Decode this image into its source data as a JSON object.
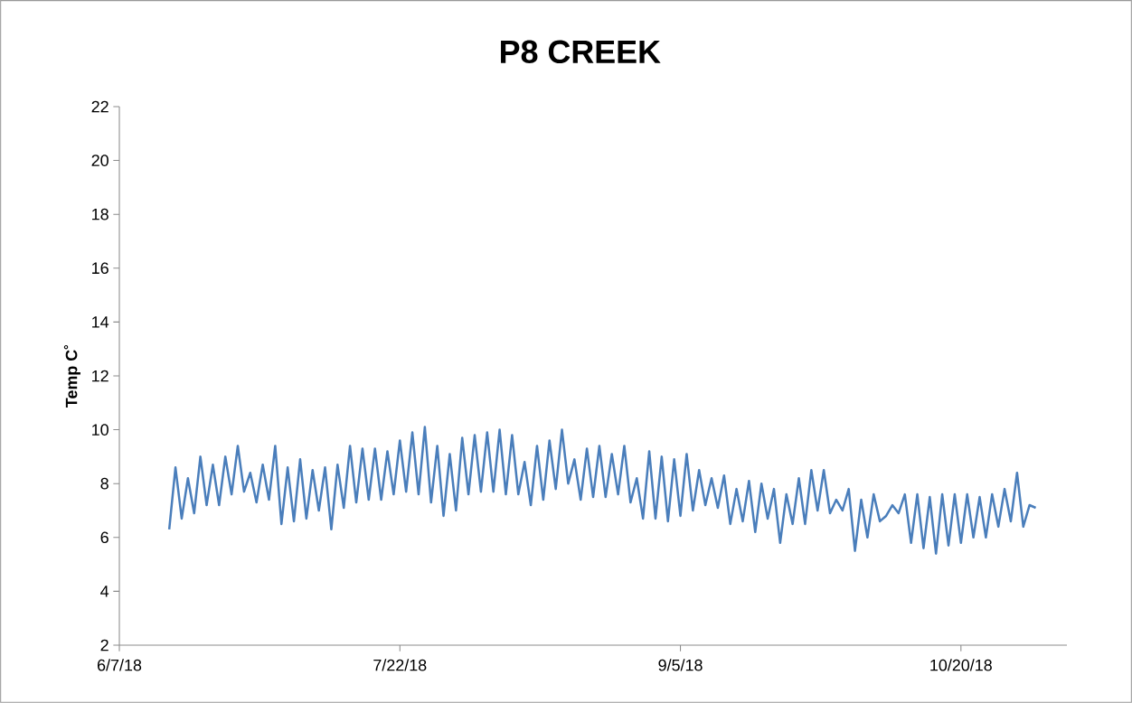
{
  "chart_data": {
    "type": "line",
    "title": "P8 CREEK",
    "ylabel": "Temp C˚",
    "x": [
      "2018-06-15",
      "2018-06-16",
      "2018-06-17",
      "2018-06-18",
      "2018-06-19",
      "2018-06-20",
      "2018-06-21",
      "2018-06-22",
      "2018-06-23",
      "2018-06-24",
      "2018-06-25",
      "2018-06-26",
      "2018-06-27",
      "2018-06-28",
      "2018-06-29",
      "2018-06-30",
      "2018-07-01",
      "2018-07-02",
      "2018-07-03",
      "2018-07-04",
      "2018-07-05",
      "2018-07-06",
      "2018-07-07",
      "2018-07-08",
      "2018-07-09",
      "2018-07-10",
      "2018-07-11",
      "2018-07-12",
      "2018-07-13",
      "2018-07-14",
      "2018-07-15",
      "2018-07-16",
      "2018-07-17",
      "2018-07-18",
      "2018-07-19",
      "2018-07-20",
      "2018-07-21",
      "2018-07-22",
      "2018-07-23",
      "2018-07-24",
      "2018-07-25",
      "2018-07-26",
      "2018-07-27",
      "2018-07-28",
      "2018-07-29",
      "2018-07-30",
      "2018-07-31",
      "2018-08-01",
      "2018-08-02",
      "2018-08-03",
      "2018-08-04",
      "2018-08-05",
      "2018-08-06",
      "2018-08-07",
      "2018-08-08",
      "2018-08-09",
      "2018-08-10",
      "2018-08-11",
      "2018-08-12",
      "2018-08-13",
      "2018-08-14",
      "2018-08-15",
      "2018-08-16",
      "2018-08-17",
      "2018-08-18",
      "2018-08-19",
      "2018-08-20",
      "2018-08-21",
      "2018-08-22",
      "2018-08-23",
      "2018-08-24",
      "2018-08-25",
      "2018-08-26",
      "2018-08-27",
      "2018-08-28",
      "2018-08-29",
      "2018-08-30",
      "2018-08-31",
      "2018-09-01",
      "2018-09-02",
      "2018-09-03",
      "2018-09-04",
      "2018-09-05",
      "2018-09-06",
      "2018-09-07",
      "2018-09-08",
      "2018-09-09",
      "2018-09-10",
      "2018-09-11",
      "2018-09-12",
      "2018-09-13",
      "2018-09-14",
      "2018-09-15",
      "2018-09-16",
      "2018-09-17",
      "2018-09-18",
      "2018-09-19",
      "2018-09-20",
      "2018-09-21",
      "2018-09-22",
      "2018-09-23",
      "2018-09-24",
      "2018-09-25",
      "2018-09-26",
      "2018-09-27",
      "2018-09-28",
      "2018-09-29",
      "2018-09-30",
      "2018-10-01",
      "2018-10-02",
      "2018-10-03",
      "2018-10-04",
      "2018-10-05",
      "2018-10-06",
      "2018-10-07",
      "2018-10-08",
      "2018-10-09",
      "2018-10-10",
      "2018-10-11",
      "2018-10-12",
      "2018-10-13",
      "2018-10-14",
      "2018-10-15",
      "2018-10-16",
      "2018-10-17",
      "2018-10-18",
      "2018-10-19",
      "2018-10-20",
      "2018-10-21",
      "2018-10-22",
      "2018-10-23",
      "2018-10-24",
      "2018-10-25",
      "2018-10-26",
      "2018-10-27",
      "2018-10-28",
      "2018-10-29",
      "2018-10-30",
      "2018-10-31",
      "2018-11-01"
    ],
    "series": [
      {
        "color": "#4a7ebb",
        "values": [
          6.3,
          8.6,
          6.7,
          8.2,
          6.9,
          9.0,
          7.2,
          8.7,
          7.2,
          9.0,
          7.6,
          9.4,
          7.7,
          8.4,
          7.3,
          8.7,
          7.4,
          9.4,
          6.5,
          8.6,
          6.6,
          8.9,
          6.7,
          8.5,
          7.0,
          8.6,
          6.3,
          8.7,
          7.1,
          9.4,
          7.3,
          9.3,
          7.4,
          9.3,
          7.4,
          9.2,
          7.6,
          9.6,
          7.7,
          9.9,
          7.6,
          10.1,
          7.3,
          9.4,
          6.8,
          9.1,
          7.0,
          9.7,
          7.6,
          9.8,
          7.7,
          9.9,
          7.7,
          10.0,
          7.6,
          9.8,
          7.6,
          8.8,
          7.2,
          9.4,
          7.4,
          9.6,
          7.8,
          10.0,
          8.0,
          8.9,
          7.4,
          9.3,
          7.5,
          9.4,
          7.5,
          9.1,
          7.6,
          9.4,
          7.3,
          8.2,
          6.7,
          9.2,
          6.7,
          9.0,
          6.6,
          8.9,
          6.8,
          9.1,
          7.0,
          8.5,
          7.2,
          8.2,
          7.1,
          8.3,
          6.5,
          7.8,
          6.6,
          8.1,
          6.2,
          8.0,
          6.7,
          7.8,
          5.8,
          7.6,
          6.5,
          8.2,
          6.5,
          8.5,
          7.0,
          8.5,
          6.9,
          7.4,
          7.0,
          7.8,
          5.5,
          7.4,
          6.0,
          7.6,
          6.6,
          6.8,
          7.2,
          6.9,
          7.6,
          5.8,
          7.6,
          5.6,
          7.5,
          5.4,
          7.6,
          5.7,
          7.6,
          5.8,
          7.6,
          6.0,
          7.5,
          6.0,
          7.6,
          6.4,
          7.8,
          6.6,
          8.4,
          6.4,
          7.2,
          7.1
        ]
      }
    ],
    "xlim": [
      "2018-06-07",
      "2018-11-06"
    ],
    "xticks": [
      {
        "value": "2018-06-07",
        "label": "6/7/18"
      },
      {
        "value": "2018-07-22",
        "label": "7/22/18"
      },
      {
        "value": "2018-09-05",
        "label": "9/5/18"
      },
      {
        "value": "2018-10-20",
        "label": "10/20/18"
      }
    ],
    "ylim": [
      2,
      22
    ],
    "yticks": [
      2,
      4,
      6,
      8,
      10,
      12,
      14,
      16,
      18,
      20,
      22
    ],
    "grid": false,
    "legend": false,
    "marker": "none",
    "line_style": "solid"
  }
}
